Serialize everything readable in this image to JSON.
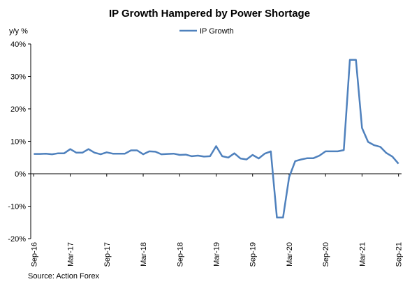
{
  "chart_data": {
    "type": "line",
    "title": "IP Growth Hampered by Power Shortage",
    "ylabel": "y/y %",
    "xlabel": "",
    "ylim": [
      -20,
      40
    ],
    "yticks": [
      -20,
      -10,
      0,
      10,
      20,
      30,
      40
    ],
    "ytick_labels": [
      "-20%",
      "-10%",
      "0%",
      "10%",
      "20%",
      "30%",
      "40%"
    ],
    "xticks": [
      {
        "index": 0,
        "label": "Sep-16"
      },
      {
        "index": 6,
        "label": "Mar-17"
      },
      {
        "index": 12,
        "label": "Sep-17"
      },
      {
        "index": 18,
        "label": "Mar-18"
      },
      {
        "index": 24,
        "label": "Sep-18"
      },
      {
        "index": 30,
        "label": "Mar-19"
      },
      {
        "index": 36,
        "label": "Sep-19"
      },
      {
        "index": 42,
        "label": "Mar-20"
      },
      {
        "index": 48,
        "label": "Sep-20"
      },
      {
        "index": 54,
        "label": "Mar-21"
      },
      {
        "index": 60,
        "label": "Sep-21"
      }
    ],
    "legend": "top-center",
    "series": [
      {
        "name": "IP Growth",
        "color": "#4f81bd",
        "values": [
          6.1,
          6.1,
          6.2,
          6.0,
          6.3,
          6.3,
          7.6,
          6.5,
          6.5,
          7.6,
          6.5,
          6.0,
          6.6,
          6.2,
          6.2,
          6.2,
          7.2,
          7.2,
          6.0,
          6.9,
          6.8,
          6.0,
          6.1,
          6.2,
          5.8,
          5.9,
          5.4,
          5.6,
          5.3,
          5.4,
          8.5,
          5.4,
          5.0,
          6.3,
          4.7,
          4.4,
          5.8,
          4.7,
          6.2,
          6.9,
          -13.5,
          -13.5,
          -1.1,
          3.9,
          4.4,
          4.8,
          4.8,
          5.6,
          6.9,
          6.9,
          6.9,
          7.3,
          35.1,
          35.1,
          14.1,
          9.8,
          8.8,
          8.3,
          6.4,
          5.3,
          3.1
        ]
      }
    ],
    "source": "Source: Action Forex"
  }
}
